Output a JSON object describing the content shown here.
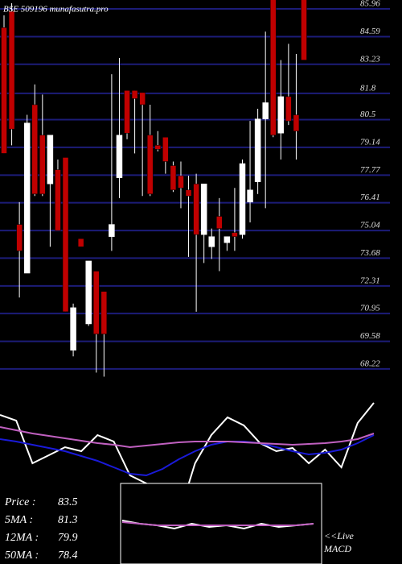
{
  "chart_data": [
    {
      "type": "candlestick",
      "title": "BSE 509196 munafasutra.pro",
      "ylim": [
        67.5,
        86.16
      ],
      "yticks": [
        85.96,
        84.59,
        83.23,
        81.8,
        80.5,
        79.14,
        77.77,
        76.41,
        75.04,
        73.68,
        72.31,
        70.95,
        69.58,
        68.22
      ],
      "grid": true,
      "grid_color": "#1c1c78",
      "up_color": "#ffffff",
      "down_color": "#c00000",
      "open": [
        84.8,
        85.6,
        75.1,
        72.7,
        81.0,
        79.5,
        77.1,
        77.8,
        78.4,
        68.9,
        74.4,
        70.2,
        72.8,
        71.8,
        74.5,
        77.4,
        81.7,
        81.7,
        81.6,
        79.5,
        79.0,
        79.4,
        78.0,
        77.5,
        76.8,
        77.1,
        74.6,
        74.0,
        75.5,
        74.2,
        74.7,
        74.6,
        76.2,
        77.2,
        80.3,
        86.2,
        79.6,
        81.4,
        80.5,
        86.2
      ],
      "high": [
        85.4,
        86.0,
        76.2,
        80.5,
        82.0,
        81.5,
        79.5,
        78.3,
        78.4,
        71.2,
        74.4,
        73.3,
        72.8,
        71.8,
        82.5,
        83.3,
        81.7,
        81.7,
        81.6,
        81.0,
        79.7,
        79.4,
        78.2,
        78.2,
        77.5,
        77.6,
        77.1,
        74.9,
        76.4,
        74.5,
        76.9,
        78.3,
        80.2,
        80.8,
        84.6,
        86.2,
        83.2,
        84.0,
        83.5,
        86.2
      ],
      "low": [
        78.6,
        79.0,
        71.5,
        72.7,
        76.5,
        76.5,
        74.0,
        74.8,
        70.8,
        68.6,
        74.0,
        70.1,
        67.8,
        67.6,
        73.8,
        76.4,
        79.3,
        78.6,
        76.5,
        76.5,
        78.7,
        77.6,
        76.7,
        75.9,
        73.5,
        70.8,
        73.2,
        73.4,
        72.8,
        73.8,
        73.8,
        74.4,
        75.2,
        76.6,
        75.9,
        79.4,
        78.3,
        80.0,
        78.3,
        83.2
      ],
      "close": [
        78.6,
        79.8,
        73.8,
        80.1,
        76.6,
        76.6,
        79.5,
        74.8,
        70.8,
        71.0,
        74.0,
        73.3,
        69.7,
        69.7,
        75.1,
        79.5,
        79.6,
        81.3,
        81.0,
        76.6,
        78.8,
        78.2,
        76.8,
        76.9,
        76.5,
        74.6,
        77.1,
        74.5,
        74.9,
        74.5,
        74.5,
        78.1,
        76.8,
        80.3,
        81.1,
        79.5,
        81.4,
        80.2,
        79.7,
        83.2
      ]
    },
    {
      "type": "line",
      "ylim": [
        -30,
        140
      ],
      "series": [
        {
          "color": "#ffffff",
          "values": [
            105,
            98,
            45,
            55,
            65,
            60,
            80,
            72,
            30,
            20,
            8,
            -20,
            45,
            80,
            102,
            92,
            70,
            60,
            64,
            45,
            62,
            40,
            95,
            120
          ]
        },
        {
          "color": "#1a1ad8",
          "values": [
            75,
            72,
            68,
            64,
            60,
            54,
            48,
            40,
            32,
            30,
            38,
            50,
            60,
            68,
            72,
            72,
            70,
            65,
            60,
            56,
            58,
            62,
            70,
            80
          ]
        },
        {
          "color": "#c060c0",
          "values": [
            90,
            86,
            82,
            79,
            76,
            73,
            70,
            68,
            65,
            67,
            69,
            71,
            72,
            72,
            72,
            71,
            70,
            69,
            68,
            69,
            70,
            72,
            75,
            82
          ]
        }
      ]
    },
    {
      "type": "line",
      "ylim": [
        -10,
        10
      ],
      "annotation": [
        "<<Live",
        "MACD"
      ],
      "series": [
        {
          "color": "#ffffff",
          "values": [
            2,
            0,
            -1,
            -3,
            0,
            -2,
            -1,
            -3,
            0,
            -2,
            -1,
            0
          ]
        },
        {
          "color": "#c060c0",
          "values": [
            1,
            0,
            -1,
            -1,
            -1,
            -1,
            -1,
            -1,
            -1,
            -1,
            -1,
            0
          ]
        }
      ]
    }
  ],
  "stats": [
    {
      "label": "Price   :",
      "value": 83.5
    },
    {
      "label": "5MA  :",
      "value": 81.3
    },
    {
      "label": "12MA :",
      "value": 79.9
    },
    {
      "label": "50MA :",
      "value": 78.4
    }
  ]
}
